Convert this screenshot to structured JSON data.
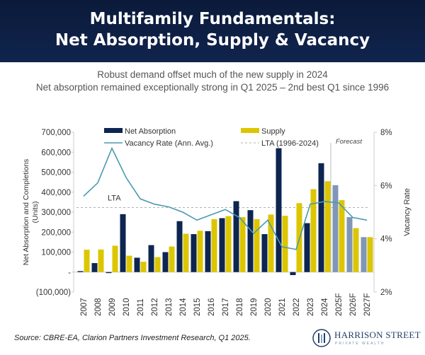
{
  "header": {
    "title_line1": "Multifamily Fundamentals:",
    "title_line2": "Net Absorption, Supply & Vacancy"
  },
  "subtitle": {
    "line1": "Robust demand offset much of the new supply in 2024",
    "line2": "Net absorption remained exceptionally strong in Q1 2025  – 2nd best Q1 since 1996"
  },
  "source": "Source: CBRE-EA, Clarion Partners Investment Research, Q1 2025.",
  "logo": {
    "name": "HARRISON STREET",
    "tagline": "PRIVATE WEALTH"
  },
  "colors": {
    "header_bg": "#0b1a3a",
    "net_absorption": "#0d2550",
    "net_absorption_forecast": "#7f96b8",
    "supply": "#dcc600",
    "vacancy": "#4a9ab0",
    "lta": "#b0b0b0"
  },
  "chart_data": {
    "type": "bar",
    "categories": [
      "2007",
      "2008",
      "2009",
      "2010",
      "2011",
      "2012",
      "2013",
      "2014",
      "2015",
      "2016",
      "2017",
      "2018",
      "2019",
      "2020",
      "2021",
      "2022",
      "2023",
      "2024",
      "2025F",
      "2026F",
      "2027F"
    ],
    "series": [
      {
        "name": "Net Absorption",
        "type": "bar",
        "axis": "left",
        "values": [
          5000,
          45000,
          -5000,
          290000,
          72000,
          135000,
          100000,
          255000,
          190000,
          205000,
          270000,
          355000,
          310000,
          190000,
          620000,
          -15000,
          245000,
          545000,
          435000,
          275000,
          175000
        ]
      },
      {
        "name": "Supply",
        "type": "bar",
        "axis": "left",
        "values": [
          112000,
          113000,
          132000,
          82000,
          52000,
          75000,
          128000,
          192000,
          207000,
          265000,
          280000,
          275000,
          265000,
          288000,
          282000,
          345000,
          415000,
          455000,
          360000,
          220000,
          175000
        ]
      },
      {
        "name": "Vacancy Rate (Ann. Avg.)",
        "type": "line",
        "axis": "right",
        "values": [
          5.6,
          6.1,
          7.4,
          6.3,
          5.5,
          5.3,
          5.2,
          5.0,
          4.7,
          4.9,
          5.1,
          4.8,
          4.2,
          4.7,
          3.7,
          3.6,
          5.3,
          5.4,
          5.35,
          4.8,
          4.7
        ]
      },
      {
        "name": "LTA (1996-2024)",
        "type": "reference",
        "axis": "left",
        "value": 323000
      }
    ],
    "lta_label": "LTA",
    "forecast_label": "Forecast",
    "forecast_start": "2025F",
    "ylabel": "Net Absorption and Completions (Units)",
    "y2label": "Vacancy Rate",
    "ylim": [
      -100000,
      700000
    ],
    "y2lim": [
      2,
      8
    ],
    "yticks": [
      "700,000",
      "600,000",
      "500,000",
      "400,000",
      "300,000",
      "200,000",
      "100,000",
      "-",
      "(100,000)"
    ],
    "y2ticks": [
      "8%",
      "6%",
      "4%",
      "2%"
    ],
    "grid": false,
    "legend": "top"
  }
}
